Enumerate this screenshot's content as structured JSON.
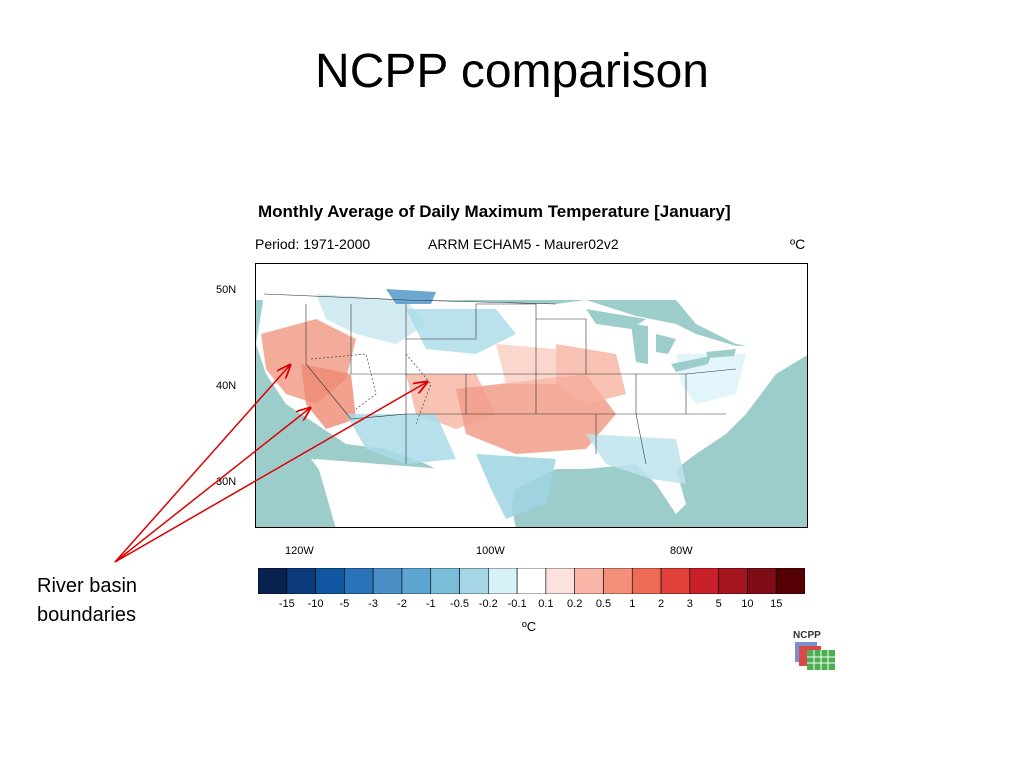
{
  "slide": {
    "title": "NCPP comparison"
  },
  "map": {
    "title": "Monthly Average of Daily Maximum Temperature [January]",
    "period": "Period: 1971-2000",
    "model": "ARRM ECHAM5 - Maurer02v2",
    "unit_top": "ºC",
    "lat_labels": [
      "50N",
      "40N",
      "30N"
    ],
    "lon_labels": [
      "120W",
      "100W",
      "80W"
    ],
    "colors": {
      "ocean": "#9dcdcb",
      "land": "#ffffff",
      "warm": "#f29d88",
      "cool": "#a9dbe8"
    }
  },
  "annotation": {
    "line1": "River basin",
    "line2": "boundaries",
    "arrow_color": "#dd0000"
  },
  "colorbar": {
    "colors": [
      "#08214f",
      "#0b3a7a",
      "#1056a0",
      "#2a73b8",
      "#4a90c7",
      "#5ea5d3",
      "#79bdd9",
      "#a6d6e5",
      "#d6f1f8",
      "#ffffff",
      "#fde1df",
      "#f9b5a8",
      "#f4907a",
      "#ee6b56",
      "#e2403a",
      "#c9202a",
      "#a6151f",
      "#7e0c14",
      "#550005"
    ],
    "labels": [
      "-15",
      "-10",
      "-5",
      "-3",
      "-2",
      "-1",
      "-0.5",
      "-0.2",
      "-0.1",
      "0.1",
      "0.2",
      "0.5",
      "1",
      "2",
      "3",
      "5",
      "10",
      "15"
    ],
    "unit": "ºC"
  },
  "logo": {
    "text": "NCPP"
  }
}
